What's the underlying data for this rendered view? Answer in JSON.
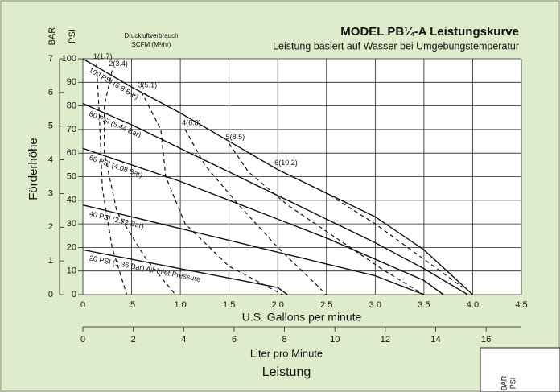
{
  "chart_data": {
    "type": "line",
    "title": "MODEL PB¼-A Leistungskurve",
    "subtitle": "Leistung basiert auf Wasser bei Umgebungstemperatur",
    "air_title": "Druckluftverbrauch",
    "air_unit": "SCFM (M³/hr)",
    "y_label": "Förderhöhe",
    "y_unit": "PSI",
    "y2_unit": "BAR",
    "x_label": "U.S. Gallons per minute",
    "x2_label": "Liter pro Minute",
    "footer": "Leistung",
    "corner_labels": [
      "BAR",
      "PSI"
    ],
    "xlim": [
      0,
      4.5
    ],
    "xticks": [
      0,
      {
        "value": 0.5,
        "label": ".5"
      },
      {
        "value": 1,
        "label": "1.0"
      },
      1.5,
      {
        "value": 2,
        "label": "2.0"
      },
      2.5,
      {
        "value": 3,
        "label": "3.0"
      },
      3.5,
      {
        "value": 4,
        "label": "4.0"
      },
      4.5
    ],
    "x2lim": [
      0,
      17.4
    ],
    "x2ticks": [
      0,
      2,
      4,
      6,
      8,
      10,
      12,
      14,
      16
    ],
    "ylim": [
      0,
      100
    ],
    "yticks": [
      0,
      10,
      20,
      30,
      40,
      50,
      60,
      70,
      80,
      90,
      100
    ],
    "y2lim": [
      0,
      7
    ],
    "y2ticks": [
      0,
      1,
      2,
      3,
      4,
      5,
      6,
      7
    ],
    "grid": true,
    "series": [
      {
        "name": "100 PSI (6.8 Bar)",
        "color": "#111111",
        "dashed": false,
        "x": [
          0,
          0.5,
          1,
          1.5,
          2,
          2.5,
          3,
          3.5,
          4
        ],
        "values": [
          100,
          88,
          77,
          65,
          53,
          43,
          33,
          19,
          0
        ]
      },
      {
        "name": "80 PSI (5.44 Bar)",
        "color": "#111111",
        "dashed": false,
        "x": [
          0,
          0.5,
          1,
          1.5,
          2,
          2.5,
          3,
          3.5,
          3.95
        ],
        "values": [
          81,
          72,
          62,
          52,
          42,
          32,
          22,
          11,
          0
        ]
      },
      {
        "name": "60 PSI (4.08 Bar)",
        "color": "#111111",
        "dashed": false,
        "x": [
          0,
          0.5,
          1,
          1.5,
          2,
          2.5,
          3,
          3.5,
          3.7
        ],
        "values": [
          62,
          55,
          48,
          40,
          32,
          24,
          15,
          6,
          0
        ]
      },
      {
        "name": "40 PSI (2.72 Bar)",
        "color": "#111111",
        "dashed": false,
        "x": [
          0,
          0.5,
          1,
          1.5,
          2,
          2.5,
          3,
          3.5
        ],
        "values": [
          38,
          33,
          28,
          23,
          18,
          13,
          8,
          0
        ]
      },
      {
        "name": "20 PSI (1.36 Bar) Air Inlet Pressure",
        "color": "#111111",
        "dashed": false,
        "x": [
          0,
          0.5,
          1,
          1.5,
          2,
          2.1
        ],
        "values": [
          19,
          15,
          11,
          7,
          3,
          0
        ]
      },
      {
        "name": "1(1.7)",
        "color": "#111111",
        "dashed": true,
        "x": [
          0.14,
          0.17,
          0.2,
          0.3,
          0.45
        ],
        "values": [
          98,
          75,
          45,
          20,
          0
        ]
      },
      {
        "name": "2(3.4)",
        "color": "#111111",
        "dashed": true,
        "x": [
          0.3,
          0.22,
          0.22,
          0.35,
          0.65,
          0.95
        ],
        "values": [
          95,
          80,
          60,
          35,
          15,
          0
        ]
      },
      {
        "name": "3(5.1)",
        "color": "#111111",
        "dashed": true,
        "x": [
          0.6,
          0.8,
          0.85,
          1.05,
          1.5,
          2.05
        ],
        "values": [
          86,
          70,
          50,
          30,
          12,
          0
        ]
      },
      {
        "name": "4(6.8)",
        "color": "#111111",
        "dashed": true,
        "x": [
          1.05,
          1.25,
          1.6,
          2.0,
          2.5
        ],
        "values": [
          70,
          55,
          38,
          20,
          0
        ]
      },
      {
        "name": "5(8.5)",
        "color": "#111111",
        "dashed": true,
        "x": [
          1.5,
          1.7,
          2.1,
          2.6,
          3.1,
          3.5
        ],
        "values": [
          64,
          52,
          38,
          24,
          10,
          0
        ]
      },
      {
        "name": "6(10.2)",
        "color": "#111111",
        "dashed": true,
        "x": [
          2.0,
          2.5,
          3.0,
          3.5,
          3.9
        ],
        "values": [
          53,
          43,
          30,
          15,
          3
        ]
      }
    ]
  }
}
